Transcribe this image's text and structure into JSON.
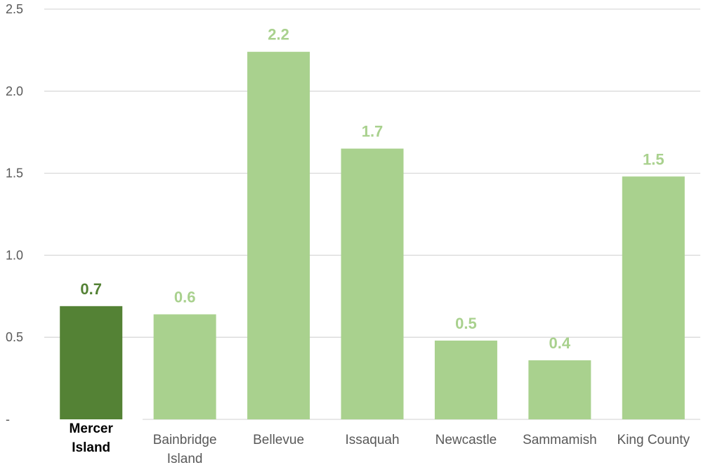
{
  "chart_data": {
    "type": "bar",
    "categories": [
      "Mercer Island",
      "Bainbridge Island",
      "Bellevue",
      "Issaquah",
      "Newcastle",
      "Sammamish",
      "King County"
    ],
    "values": [
      0.69,
      0.64,
      2.24,
      1.65,
      0.48,
      0.36,
      1.48
    ],
    "data_labels": [
      "0.7",
      "0.6",
      "2.2",
      "1.7",
      "0.5",
      "0.4",
      "1.5"
    ],
    "highlight_index": 0,
    "ylim": [
      0,
      2.5
    ],
    "y_ticks": [
      {
        "value": 0,
        "label": "-"
      },
      {
        "value": 0.5,
        "label": "0.5"
      },
      {
        "value": 1.0,
        "label": "1.0"
      },
      {
        "value": 1.5,
        "label": "1.5"
      },
      {
        "value": 2.0,
        "label": "2.0"
      },
      {
        "value": 2.5,
        "label": "2.5"
      }
    ],
    "title": "",
    "xlabel": "",
    "ylabel": "",
    "grid": true,
    "legend": "none",
    "colors": {
      "bar": "#a9d18e",
      "highlight": "#548235",
      "grid": "#d9d9d9",
      "tick_text": "#595959",
      "highlight_text": "#000000"
    }
  }
}
